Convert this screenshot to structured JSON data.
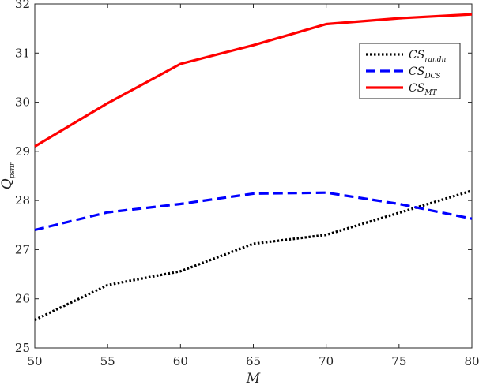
{
  "chart_data": {
    "type": "line",
    "xlabel": "M",
    "ylabel": {
      "main": "Q",
      "sub": "psnr"
    },
    "xlim": [
      50,
      80
    ],
    "ylim": [
      25,
      32
    ],
    "x_ticks": [
      50,
      55,
      60,
      65,
      70,
      75,
      80
    ],
    "y_ticks": [
      25,
      26,
      27,
      28,
      29,
      30,
      31,
      32
    ],
    "grid": false,
    "legend_position": "top-right",
    "x": [
      50,
      55,
      60,
      65,
      70,
      75,
      80
    ],
    "series": [
      {
        "name": "CS",
        "name_sub": "randn",
        "color": "#000000",
        "style": "dotted",
        "values": [
          25.57,
          26.28,
          26.56,
          27.12,
          27.3,
          27.75,
          28.2
        ]
      },
      {
        "name": "CS",
        "name_sub": "DCS",
        "color": "#0000ff",
        "style": "dashed",
        "values": [
          27.4,
          27.76,
          27.93,
          28.14,
          28.16,
          27.93,
          27.63
        ]
      },
      {
        "name": "CS",
        "name_sub": "MT",
        "color": "#ff0000",
        "style": "solid",
        "values": [
          29.1,
          29.98,
          30.78,
          31.16,
          31.59,
          31.71,
          31.79
        ]
      }
    ]
  }
}
